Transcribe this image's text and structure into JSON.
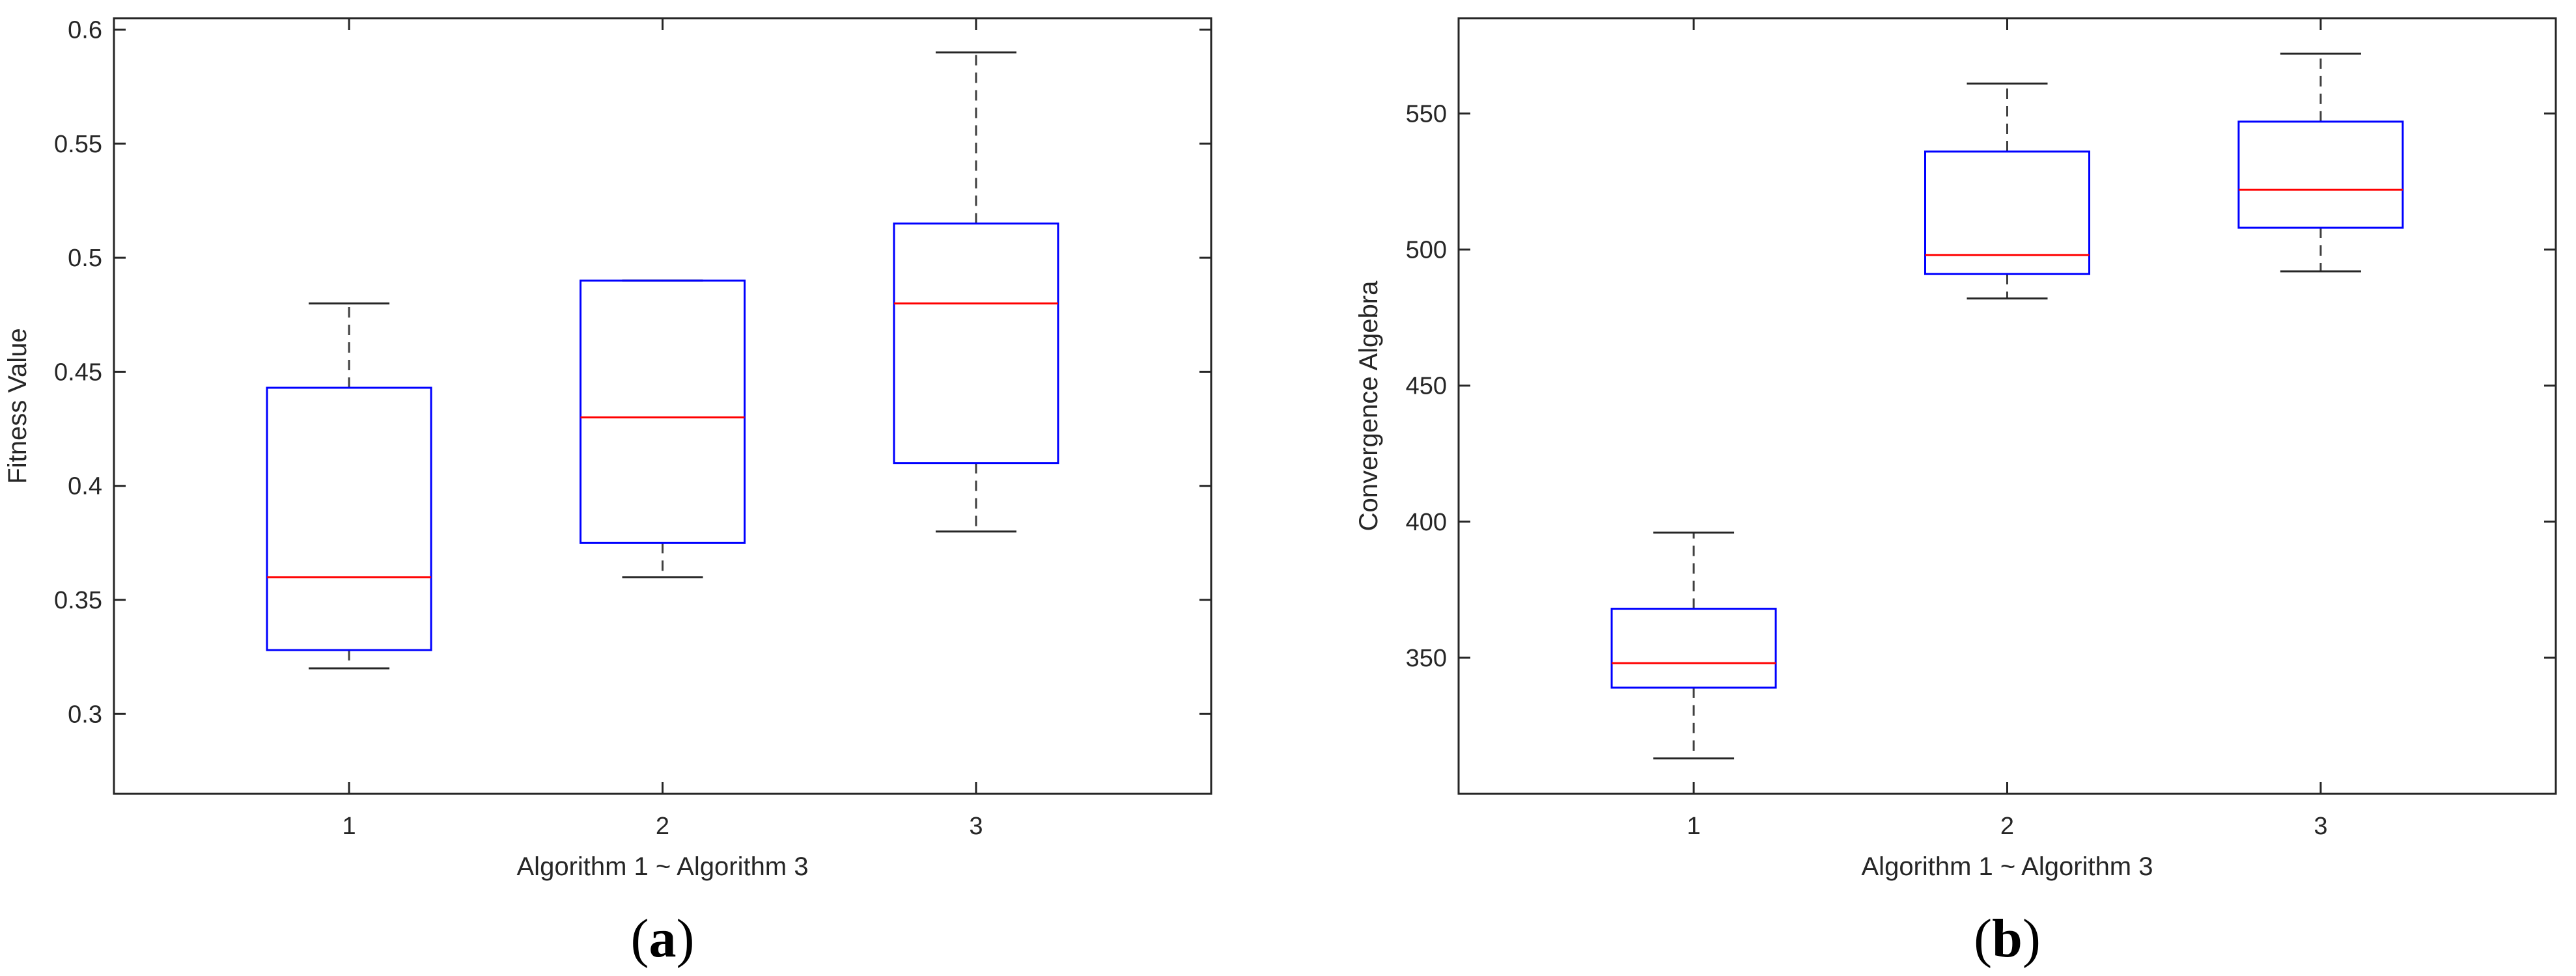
{
  "colors": {
    "box": "#0000ff",
    "median": "#ff0000",
    "whisker": "#404040",
    "axis": "#262626"
  },
  "chart_data": [
    {
      "type": "box",
      "panel_label": "a",
      "xlabel": "Algorithm 1 ~ Algorithm 3",
      "ylabel": "Fitness Value",
      "categories": [
        "1",
        "2",
        "3"
      ],
      "ylim": [
        0.265,
        0.605
      ],
      "yticks": [
        0.3,
        0.35,
        0.4,
        0.45,
        0.5,
        0.55,
        0.6
      ],
      "ytick_labels": [
        "0.3",
        "0.35",
        "0.4",
        "0.45",
        "0.5",
        "0.55",
        "0.6"
      ],
      "boxes": [
        {
          "min": 0.32,
          "q1": 0.328,
          "median": 0.36,
          "q3": 0.443,
          "max": 0.48
        },
        {
          "min": 0.36,
          "q1": 0.375,
          "median": 0.43,
          "q3": 0.49,
          "max": 0.49
        },
        {
          "min": 0.38,
          "q1": 0.41,
          "median": 0.48,
          "q3": 0.515,
          "max": 0.59
        }
      ],
      "grid": false
    },
    {
      "type": "box",
      "panel_label": "b",
      "xlabel": "Algorithm 1 ~ Algorithm 3",
      "ylabel": "Convergence Algebra",
      "categories": [
        "1",
        "2",
        "3"
      ],
      "ylim": [
        300,
        585
      ],
      "yticks": [
        350,
        400,
        450,
        500,
        550
      ],
      "ytick_labels": [
        "350",
        "400",
        "450",
        "500",
        "550"
      ],
      "boxes": [
        {
          "min": 313,
          "q1": 339,
          "median": 348,
          "q3": 368,
          "max": 396
        },
        {
          "min": 482,
          "q1": 491,
          "median": 498,
          "q3": 536,
          "max": 561
        },
        {
          "min": 492,
          "q1": 508,
          "median": 522,
          "q3": 547,
          "max": 572
        }
      ],
      "grid": false
    }
  ]
}
